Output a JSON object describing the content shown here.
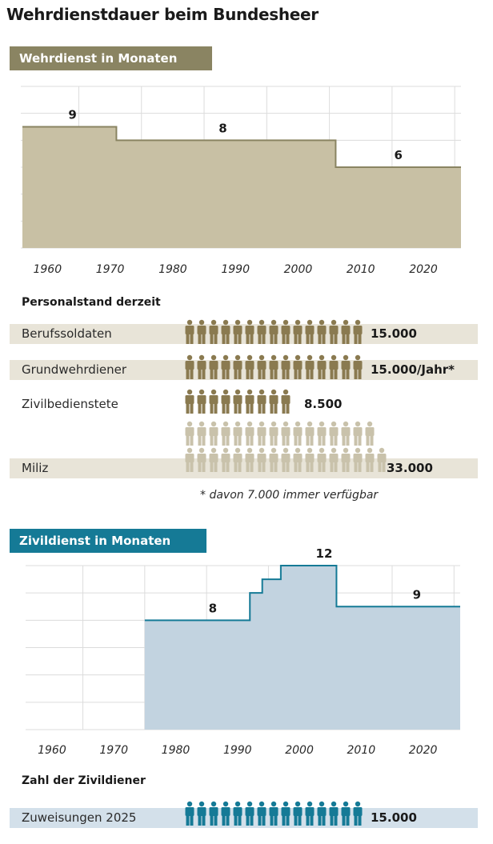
{
  "title": "Wehrdienstdauer beim Bundesheer",
  "chart_data": [
    {
      "type": "area",
      "title": "Wehrdienst in Monaten",
      "step": true,
      "x": [
        1956,
        1971,
        2006,
        2026
      ],
      "y": [
        9,
        8,
        6,
        6
      ],
      "data_labels": [
        {
          "x": 1964,
          "value": "9"
        },
        {
          "x": 1988,
          "value": "8"
        },
        {
          "x": 2016,
          "value": "6"
        }
      ],
      "xlim": [
        1956,
        2026
      ],
      "ylim": [
        0,
        12
      ],
      "xticks": [
        "1960",
        "1970",
        "1980",
        "1990",
        "2000",
        "2010",
        "2020"
      ],
      "grid": true,
      "fill": "#c8c0a4",
      "line": "#8a8462"
    },
    {
      "type": "area",
      "title": "Zivildienst in Monaten",
      "step": true,
      "x": [
        1975,
        1992,
        1994,
        1997,
        2006,
        2026
      ],
      "y": [
        8,
        10,
        11,
        12,
        9,
        9
      ],
      "data_labels": [
        {
          "x": 1986,
          "value": "8"
        },
        {
          "x": 2004,
          "value": "12"
        },
        {
          "x": 2019,
          "value": "9"
        }
      ],
      "xlim": [
        1956,
        2026
      ],
      "ylim": [
        0,
        12
      ],
      "xticks": [
        "1960",
        "1970",
        "1980",
        "1990",
        "2000",
        "2010",
        "2020"
      ],
      "grid": true,
      "fill": "#c2d3e0",
      "line": "#157a96"
    },
    {
      "type": "bar",
      "title": "Personalstand derzeit",
      "categories": [
        "Berufssoldaten",
        "Grundwehrdiener",
        "Zivilbedienstete",
        "Miliz"
      ],
      "values": [
        15000,
        15000,
        8500,
        33000
      ],
      "value_labels": [
        "15.000",
        "15.000/Jahr*",
        "8.500",
        "33.000"
      ],
      "footnote": "* davon 7.000 immer verfügbar",
      "unit_icon": "person-icon",
      "persons_per_icon": 1000
    },
    {
      "type": "bar",
      "title": "Zahl der Zivildiener",
      "categories": [
        "Zuweisungen 2025"
      ],
      "values": [
        15000
      ],
      "value_labels": [
        "15.000"
      ],
      "unit_icon": "person-icon",
      "persons_per_icon": 1000
    }
  ],
  "colors": {
    "wehr_accent": "#8a8462",
    "wehr_person": "#8a7a50",
    "wehr_person_light": "#c9c2ab",
    "row_bg": "#e8e4d8",
    "zivil_accent": "#157a96",
    "zivil_row_bg": "#d3e0ea"
  }
}
